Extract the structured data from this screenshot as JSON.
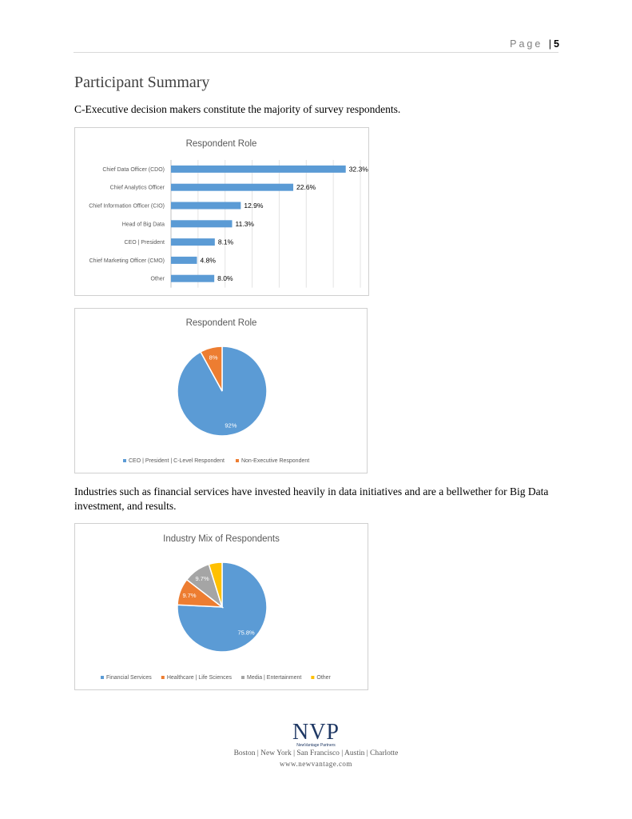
{
  "header": {
    "page_word": "Page",
    "separator": "|",
    "page_number": "5"
  },
  "section": {
    "title": "Participant Summary"
  },
  "paragraphs": {
    "intro": "C-Executive decision makers constitute the majority of survey respondents.",
    "industries": "Industries such as financial services have invested heavily in data initiatives and are a bellwether for Big Data investment, and results."
  },
  "colors": {
    "blue": "#5b9bd5",
    "orange": "#ed7d31",
    "gray": "#a5a5a5",
    "yellow": "#ffc000"
  },
  "chart_data": [
    {
      "type": "bar",
      "orientation": "horizontal",
      "title": "Respondent Role",
      "categories": [
        "Chief Data Officer (CDO)",
        "Chief Analytics Officer",
        "Chief Information Officer (CIO)",
        "Head of Big Data",
        "CEO | President",
        "Chief Marketing Officer (CMO)",
        "Other"
      ],
      "values": [
        32.3,
        22.6,
        12.9,
        11.3,
        8.1,
        4.8,
        8.0
      ],
      "data_labels": [
        "32.3%",
        "22.6%",
        "12.9%",
        "11.3%",
        "8.1%",
        "4.8%",
        "8.0%"
      ],
      "xlim": [
        0,
        35
      ],
      "grid": true,
      "color": "#5b9bd5"
    },
    {
      "type": "pie",
      "title": "Respondent Role",
      "labels": [
        "CEO | President | C-Level Respondent",
        "Non-Executive Respondent"
      ],
      "values": [
        92,
        8
      ],
      "data_labels": [
        "92%",
        "8%"
      ],
      "colors": [
        "#5b9bd5",
        "#ed7d31"
      ],
      "legend": "bottom"
    },
    {
      "type": "pie",
      "title": "Industry Mix of Respondents",
      "labels": [
        "Financial Services",
        "Healthcare | Life Sciences",
        "Media | Entertainment",
        "Other"
      ],
      "values": [
        75.8,
        9.7,
        9.7,
        4.8
      ],
      "data_labels": [
        "75.8%",
        "9.7%",
        "9.7%",
        ""
      ],
      "colors": [
        "#5b9bd5",
        "#ed7d31",
        "#a5a5a5",
        "#ffc000"
      ],
      "legend": "bottom"
    }
  ],
  "footer": {
    "logo": "NVP",
    "company": "NewVantage Partners",
    "cities": "Boston | New York | San Francisco | Austin | Charlotte",
    "url": "www.newvantage.com"
  }
}
